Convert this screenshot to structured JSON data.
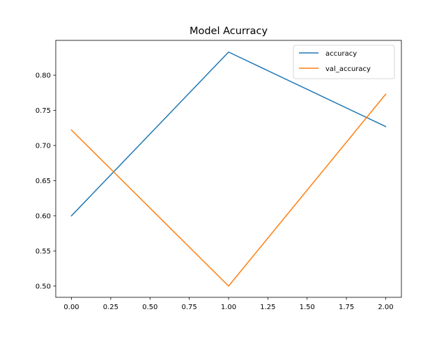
{
  "chart_data": {
    "type": "line",
    "title": "Model Acurracy",
    "xlabel": "",
    "ylabel": "",
    "x": [
      0,
      1,
      2
    ],
    "series": [
      {
        "name": "accuracy",
        "values": [
          0.6,
          0.833,
          0.727
        ],
        "color": "#1f77b4"
      },
      {
        "name": "val_accuracy",
        "values": [
          0.722,
          0.5,
          0.773
        ],
        "color": "#ff7f0e"
      }
    ],
    "xlim": [
      -0.1,
      2.1
    ],
    "ylim": [
      0.484,
      0.8496
    ],
    "xticks": [
      0.0,
      0.25,
      0.5,
      0.75,
      1.0,
      1.25,
      1.5,
      1.75,
      2.0
    ],
    "xtick_labels": [
      "0.00",
      "0.25",
      "0.50",
      "0.75",
      "1.00",
      "1.25",
      "1.50",
      "1.75",
      "2.00"
    ],
    "yticks": [
      0.5,
      0.55,
      0.6,
      0.65,
      0.7,
      0.75,
      0.8
    ],
    "ytick_labels": [
      "0.50",
      "0.55",
      "0.60",
      "0.65",
      "0.70",
      "0.75",
      "0.80"
    ],
    "grid": false,
    "legend_position": "top-right"
  }
}
